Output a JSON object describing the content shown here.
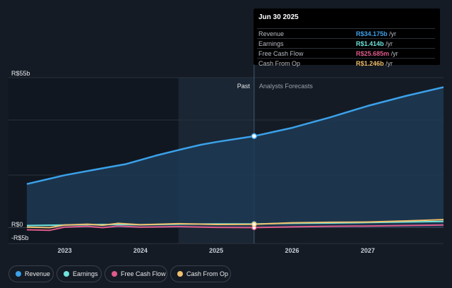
{
  "tooltip": {
    "date": "Jun 30 2025",
    "rows": [
      {
        "name": "Revenue",
        "value": "R$34.175b",
        "unit": "/yr",
        "color": "#3ba1ea"
      },
      {
        "name": "Earnings",
        "value": "R$1.414b",
        "unit": "/yr",
        "color": "#6fe3dc"
      },
      {
        "name": "Free Cash Flow",
        "value": "R$25.685m",
        "unit": "/yr",
        "color": "#e05a8c"
      },
      {
        "name": "Cash From Op",
        "value": "R$1.246b",
        "unit": "/yr",
        "color": "#f0c06e"
      }
    ]
  },
  "chart_data": {
    "type": "line",
    "y_tick_labels": [
      "R$55b",
      "R$0",
      "-R$5b"
    ],
    "ylim": [
      -5,
      55
    ],
    "xlim": [
      2022.5,
      2028.0
    ],
    "x_tick_labels": [
      "2023",
      "2024",
      "2025",
      "2026",
      "2027"
    ],
    "x_ticks": [
      2023,
      2024,
      2025,
      2026,
      2027
    ],
    "past_label": "Past",
    "forecast_label": "Analysts Forecasts",
    "divider_x": 2025.5,
    "highlight_start_x": 2024.5,
    "series": [
      {
        "name": "Revenue",
        "color": "#3ba1ea",
        "x": [
          2022.5,
          2023.0,
          2023.5,
          2023.8,
          2024.2,
          2024.5,
          2024.8,
          2025.0,
          2025.5,
          2026.0,
          2026.5,
          2027.0,
          2027.5,
          2028.0
        ],
        "y": [
          16.3,
          19.6,
          22.2,
          23.7,
          26.9,
          29.0,
          31.0,
          32.0,
          34.2,
          37.3,
          41.2,
          45.5,
          49.2,
          52.5
        ]
      },
      {
        "name": "Earnings",
        "color": "#6fe3dc",
        "x": [
          2022.5,
          2023.0,
          2023.5,
          2024.0,
          2024.5,
          2025.0,
          2025.5,
          2026.0,
          2026.5,
          2027.0,
          2027.5,
          2028.0
        ],
        "y": [
          0.8,
          1.0,
          1.2,
          1.1,
          1.3,
          1.4,
          1.4,
          1.6,
          1.7,
          1.9,
          2.1,
          2.3
        ]
      },
      {
        "name": "Free Cash Flow",
        "color": "#e05a8c",
        "x": [
          2022.5,
          2022.8,
          2023.0,
          2023.3,
          2023.5,
          2023.7,
          2024.0,
          2024.5,
          2025.0,
          2025.5,
          2026.0,
          2026.5,
          2027.0,
          2027.5,
          2028.0
        ],
        "y": [
          -0.8,
          -1.0,
          0.2,
          0.5,
          0.0,
          0.6,
          0.2,
          0.4,
          0.1,
          0.03,
          0.3,
          0.5,
          0.6,
          0.8,
          1.0
        ]
      },
      {
        "name": "Cash From Op",
        "color": "#f0c06e",
        "x": [
          2022.5,
          2022.8,
          2023.0,
          2023.3,
          2023.5,
          2023.7,
          2024.0,
          2024.5,
          2025.0,
          2025.5,
          2026.0,
          2026.5,
          2027.0,
          2027.5,
          2028.0
        ],
        "y": [
          0.2,
          0.0,
          1.0,
          1.3,
          0.9,
          1.6,
          1.1,
          1.5,
          1.2,
          1.25,
          1.8,
          2.0,
          2.1,
          2.5,
          3.0
        ]
      }
    ]
  }
}
